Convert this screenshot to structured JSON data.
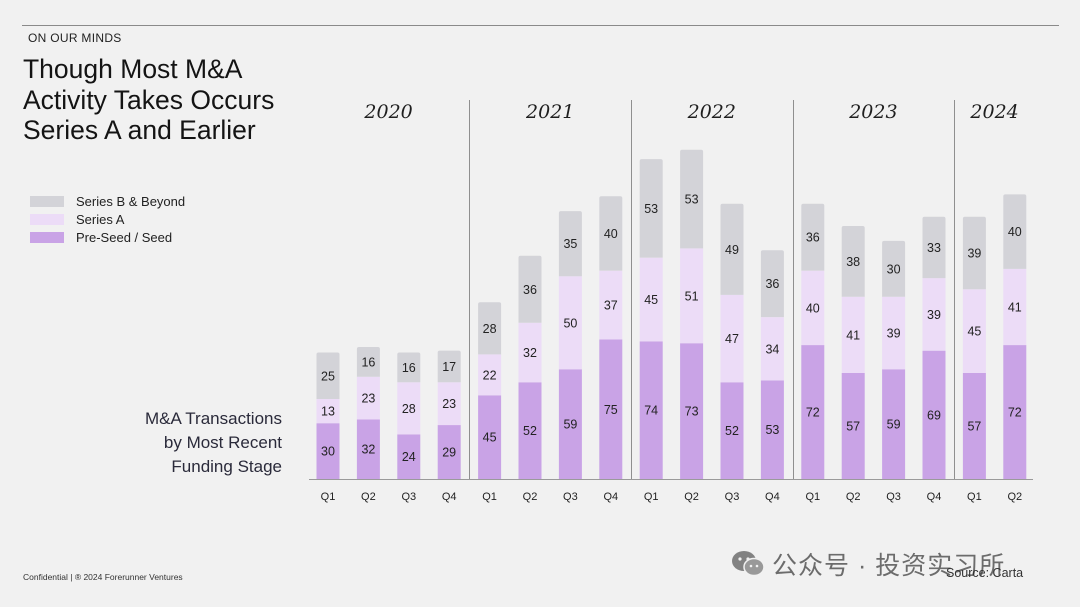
{
  "header": {
    "kicker": "ON OUR MINDS",
    "title_lines": [
      "Though Most M&A",
      "Activity Takes Occurs",
      "Series A and Earlier"
    ]
  },
  "legend": [
    {
      "label": "Series B & Beyond",
      "color": "#d3d3d8"
    },
    {
      "label": "Series A",
      "color": "#ecdcf7"
    },
    {
      "label": "Pre-Seed / Seed",
      "color": "#c9a3e6"
    }
  ],
  "side_label_lines": [
    "M&A Transactions",
    "by Most Recent",
    "Funding Stage"
  ],
  "footer": {
    "confidential": "Confidential | ® 2024 Forerunner Ventures",
    "source": "Source: Carta"
  },
  "watermark": {
    "text": "公众号 · 投资实习所",
    "icon": "wechat-icon"
  },
  "chart_data": {
    "type": "bar",
    "stacked": true,
    "title": "M&A Transactions by Most Recent Funding Stage",
    "categories": [
      "Q1",
      "Q2",
      "Q3",
      "Q4",
      "Q1",
      "Q2",
      "Q3",
      "Q4",
      "Q1",
      "Q2",
      "Q3",
      "Q4",
      "Q1",
      "Q2",
      "Q3",
      "Q4",
      "Q1",
      "Q2"
    ],
    "groups": [
      {
        "year": "2020",
        "count": 4
      },
      {
        "year": "2021",
        "count": 4
      },
      {
        "year": "2022",
        "count": 4
      },
      {
        "year": "2023",
        "count": 4
      },
      {
        "year": "2024",
        "count": 2
      }
    ],
    "series": [
      {
        "name": "Pre-Seed / Seed",
        "color": "#c9a3e6",
        "values": [
          30,
          32,
          24,
          29,
          45,
          52,
          59,
          75,
          74,
          73,
          52,
          53,
          72,
          57,
          59,
          69,
          57,
          72
        ]
      },
      {
        "name": "Series A",
        "color": "#ecdcf7",
        "values": [
          13,
          23,
          28,
          23,
          22,
          32,
          50,
          37,
          45,
          51,
          47,
          34,
          40,
          41,
          39,
          39,
          45,
          41
        ]
      },
      {
        "name": "Series B & Beyond",
        "color": "#d3d3d8",
        "values": [
          25,
          16,
          16,
          17,
          28,
          36,
          35,
          40,
          53,
          53,
          49,
          36,
          36,
          38,
          30,
          33,
          39,
          40
        ]
      }
    ],
    "xlabel": "",
    "ylabel": "",
    "ylim": [
      0,
      180
    ],
    "grid": false,
    "legend_position": "top-left"
  }
}
